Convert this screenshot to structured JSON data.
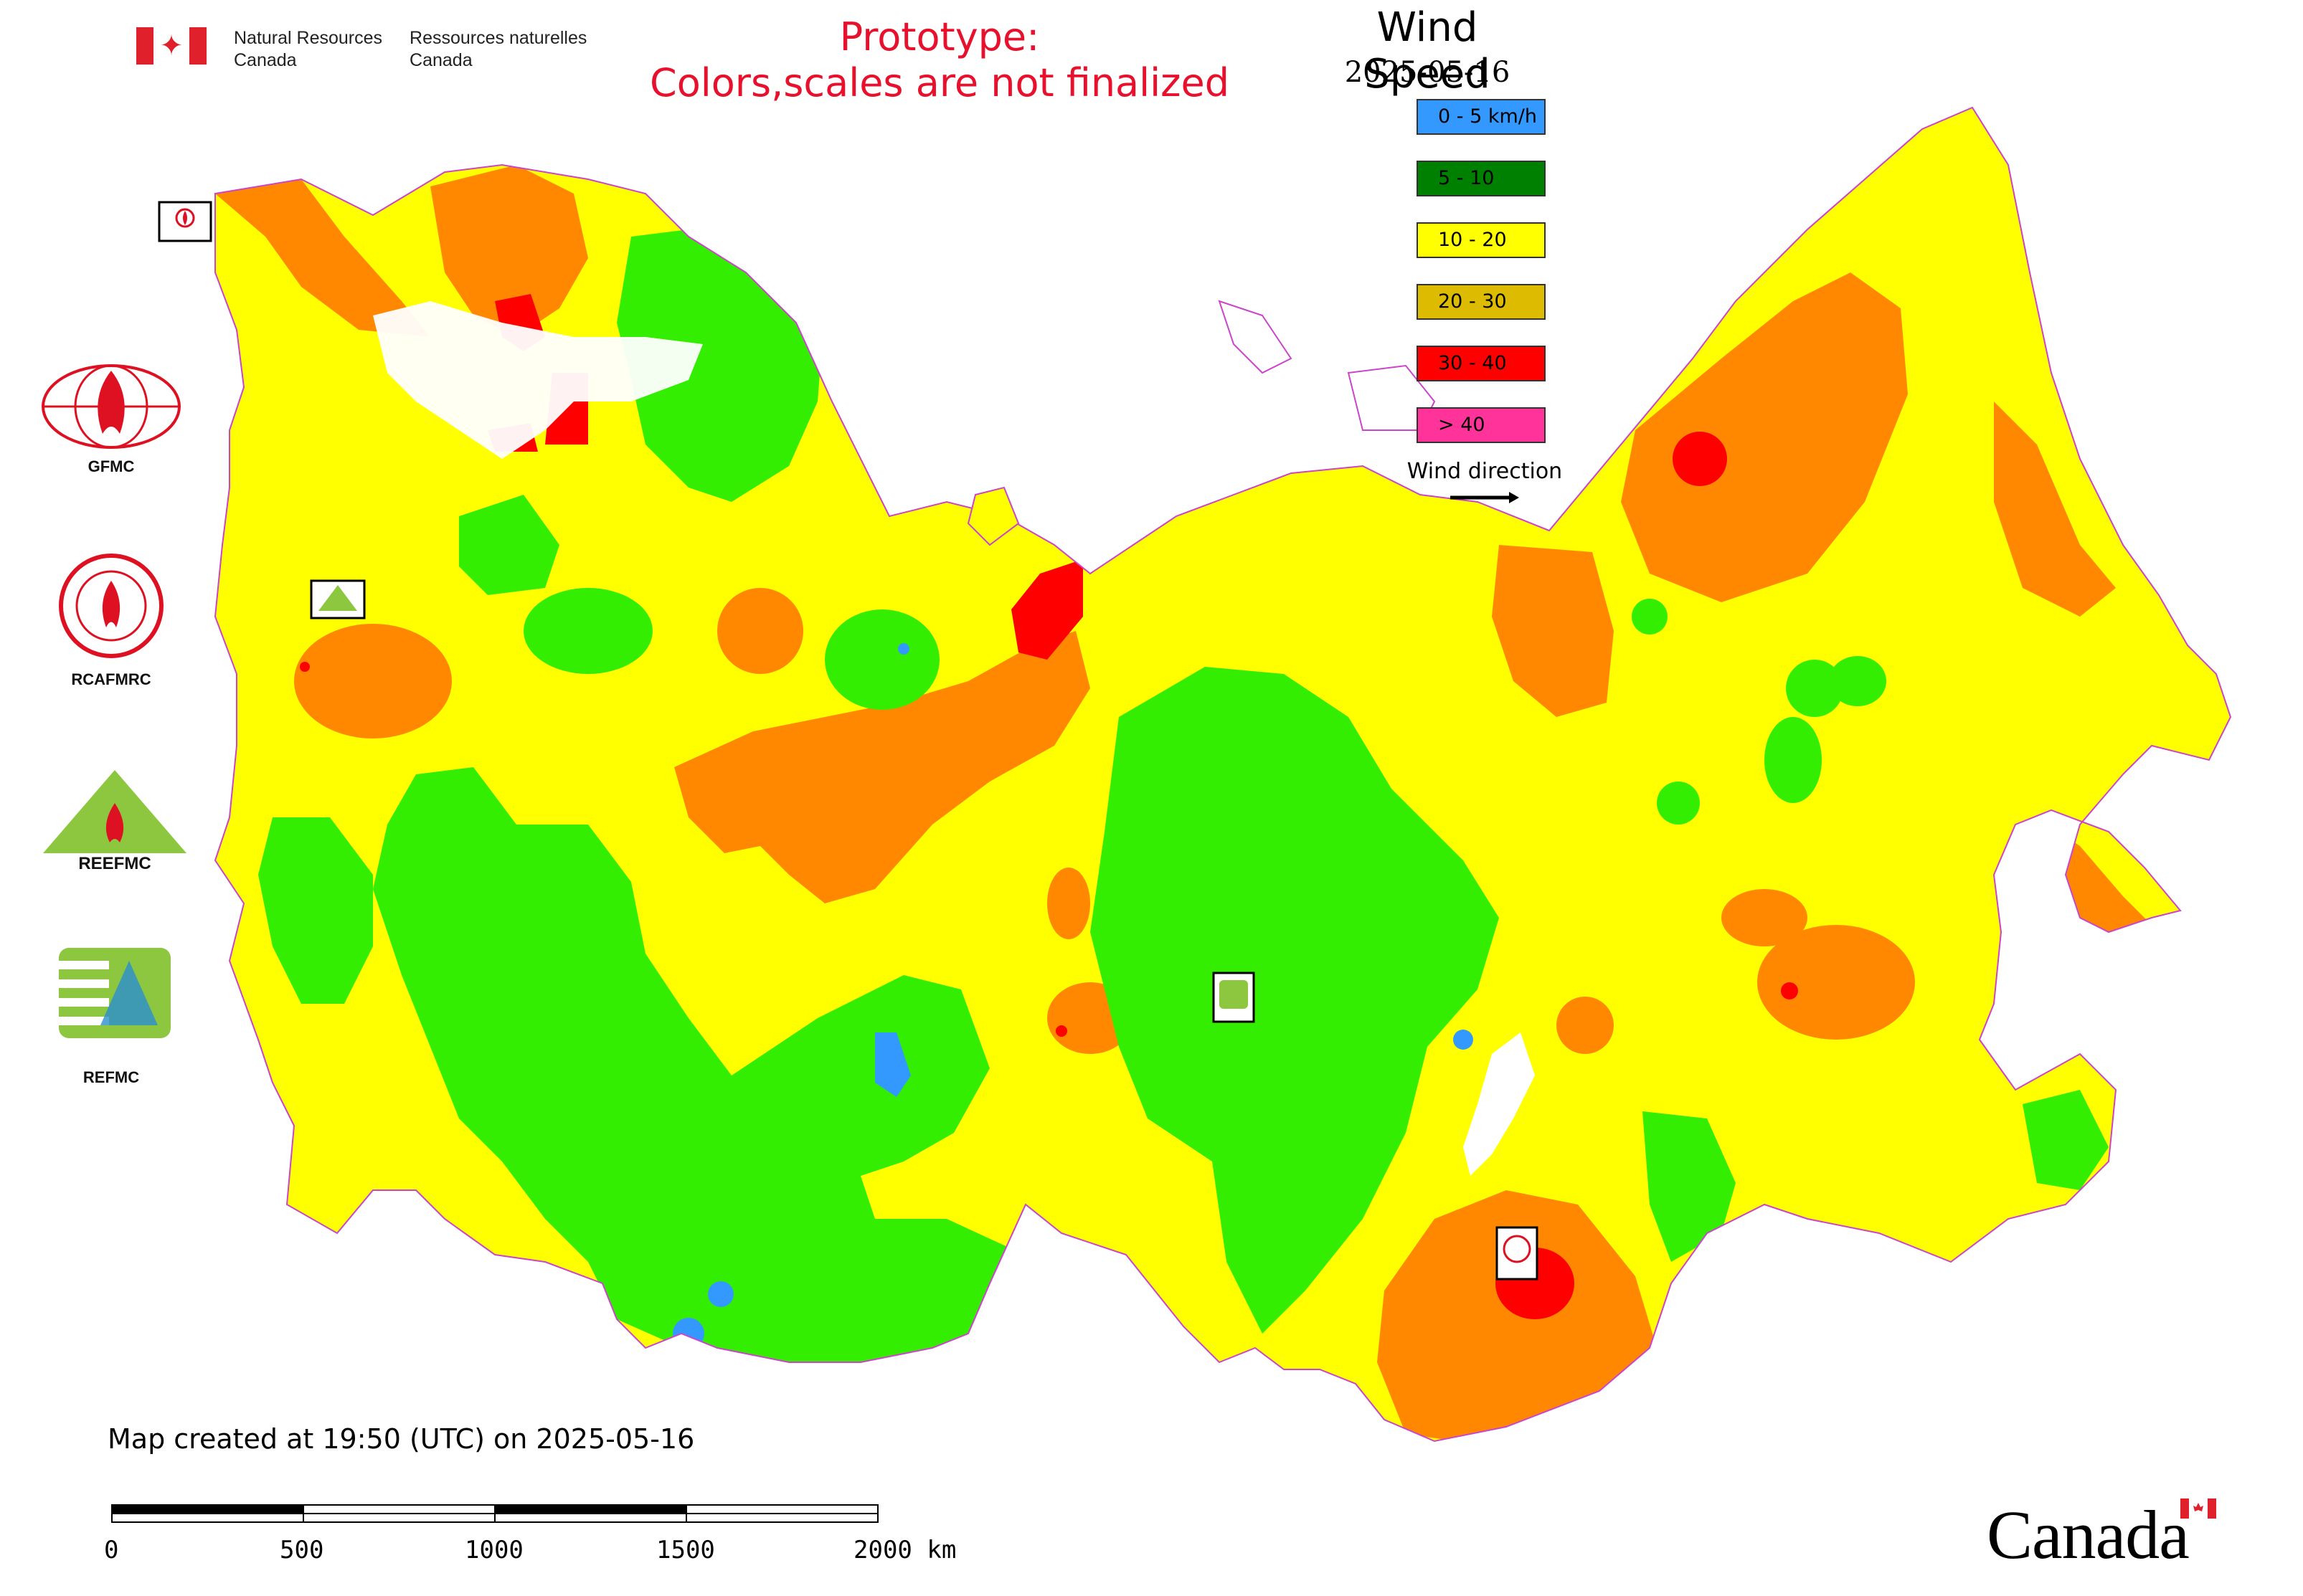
{
  "header": {
    "nrcan_en": [
      "Natural Resources",
      "Canada"
    ],
    "nrcan_fr": [
      "Ressources naturelles",
      "Canada"
    ],
    "prototype_notice": [
      "Prototype:",
      "Colors,scales are not finalized"
    ]
  },
  "legend": {
    "title": "Wind Speed",
    "date": "2025-05-16",
    "classes": [
      {
        "label": "0 - 5 km/h",
        "color": "#3399ff"
      },
      {
        "label": "5 - 10",
        "color": "#008000"
      },
      {
        "label": "10 - 20",
        "color": "#ffff00"
      },
      {
        "label": "20 - 30",
        "color": "#ddbb00"
      },
      {
        "label": "30 - 40",
        "color": "#ff0000"
      },
      {
        "label": "> 40",
        "color": "#ff3399"
      }
    ],
    "wind_direction_label": "Wind direction"
  },
  "map_colors": {
    "yellow": "#ffff00",
    "green": "#33ee00",
    "orange": "#ff8800",
    "red": "#ff0000",
    "blue": "#3399ff",
    "magenta": "#ff00ff",
    "border": "#cc44cc"
  },
  "logos": [
    {
      "label": "GFMC",
      "icon": "gfmc-flame-globe-icon"
    },
    {
      "label": "RCAFMRC",
      "icon": "rcafmrc-seal-icon"
    },
    {
      "label": "REEFMC",
      "icon": "reefmc-triangle-icon"
    },
    {
      "label": "REFMC",
      "icon": "refmc-sigma-icon"
    }
  ],
  "footer": {
    "created_note": "Map created at 19:50 (UTC) on 2025-05-16",
    "scale_labels": [
      "0",
      "500",
      "1000",
      "1500",
      "2000 km"
    ],
    "canada_wordmark": "Canada"
  }
}
